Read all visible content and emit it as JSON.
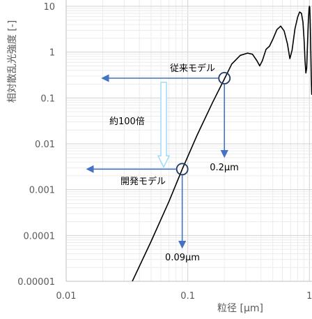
{
  "chart_data": {
    "type": "line",
    "xscale": "log",
    "yscale": "log",
    "xlim": [
      0.01,
      1.05
    ],
    "ylim": [
      1e-05,
      10
    ],
    "x_ticks": [
      {
        "value": 0.01,
        "label": "0.01"
      },
      {
        "value": 0.1,
        "label": "0.1"
      },
      {
        "value": 1,
        "label": "1"
      }
    ],
    "y_ticks": [
      {
        "value": 10,
        "label": "10"
      },
      {
        "value": 1,
        "label": "1"
      },
      {
        "value": 0.1,
        "label": "0.1"
      },
      {
        "value": 0.01,
        "label": "0.01"
      },
      {
        "value": 0.001,
        "label": "0.001"
      },
      {
        "value": 0.0001,
        "label": "0.0001"
      },
      {
        "value": 1e-05,
        "label": "0.00001"
      }
    ],
    "xlabel": "粒径 [μm]",
    "ylabel": "相対散乱光強度 [-]",
    "grid": true,
    "legend": "none",
    "series": [
      {
        "color": "#000000",
        "points": [
          [
            0.035,
            1e-05
          ],
          [
            0.05,
            7.5e-05
          ],
          [
            0.07,
            0.00055
          ],
          [
            0.09,
            0.0028
          ],
          [
            0.12,
            0.016
          ],
          [
            0.16,
            0.08
          ],
          [
            0.2,
            0.26
          ],
          [
            0.23,
            0.55
          ],
          [
            0.27,
            0.85
          ],
          [
            0.31,
            0.95
          ],
          [
            0.34,
            0.9
          ],
          [
            0.37,
            0.65
          ],
          [
            0.39,
            0.5
          ],
          [
            0.41,
            0.65
          ],
          [
            0.44,
            1.15
          ],
          [
            0.47,
            1.35
          ],
          [
            0.5,
            1.9
          ],
          [
            0.54,
            3.1
          ],
          [
            0.58,
            3.7
          ],
          [
            0.62,
            2.9
          ],
          [
            0.66,
            1.5
          ],
          [
            0.69,
            0.72
          ],
          [
            0.72,
            1.1
          ],
          [
            0.76,
            3.2
          ],
          [
            0.8,
            5.8
          ],
          [
            0.83,
            7.5
          ],
          [
            0.86,
            7.0
          ],
          [
            0.885,
            4.5
          ],
          [
            0.905,
            1.8
          ],
          [
            0.92,
            0.65
          ],
          [
            0.935,
            0.35
          ],
          [
            0.95,
            0.45
          ],
          [
            0.965,
            1.6
          ],
          [
            0.98,
            5.0
          ],
          [
            0.993,
            9.0
          ],
          [
            1.0,
            10.0
          ],
          [
            1.007,
            9.5
          ],
          [
            1.015,
            5.0
          ],
          [
            1.025,
            1.2
          ],
          [
            1.035,
            0.3
          ],
          [
            1.045,
            0.12
          ],
          [
            1.05,
            0.2
          ]
        ]
      }
    ],
    "annotations": {
      "conventional": {
        "label": "従来モデル",
        "x": 0.2,
        "y": 0.27,
        "arrow_to_x": 0.02
      },
      "developed": {
        "label": "開発モデル",
        "x": 0.09,
        "y": 0.0028,
        "arrow_to_x": 0.015
      },
      "conventional_size": {
        "label": "0.2μm",
        "x": 0.2
      },
      "developed_size": {
        "label": "0.09μm",
        "x": 0.09
      },
      "ratio": {
        "label": "約100倍"
      },
      "colors": {
        "arrow": "#4472c4",
        "ratio_arrow": "#9ddcf5",
        "curve": "#000000"
      }
    }
  }
}
